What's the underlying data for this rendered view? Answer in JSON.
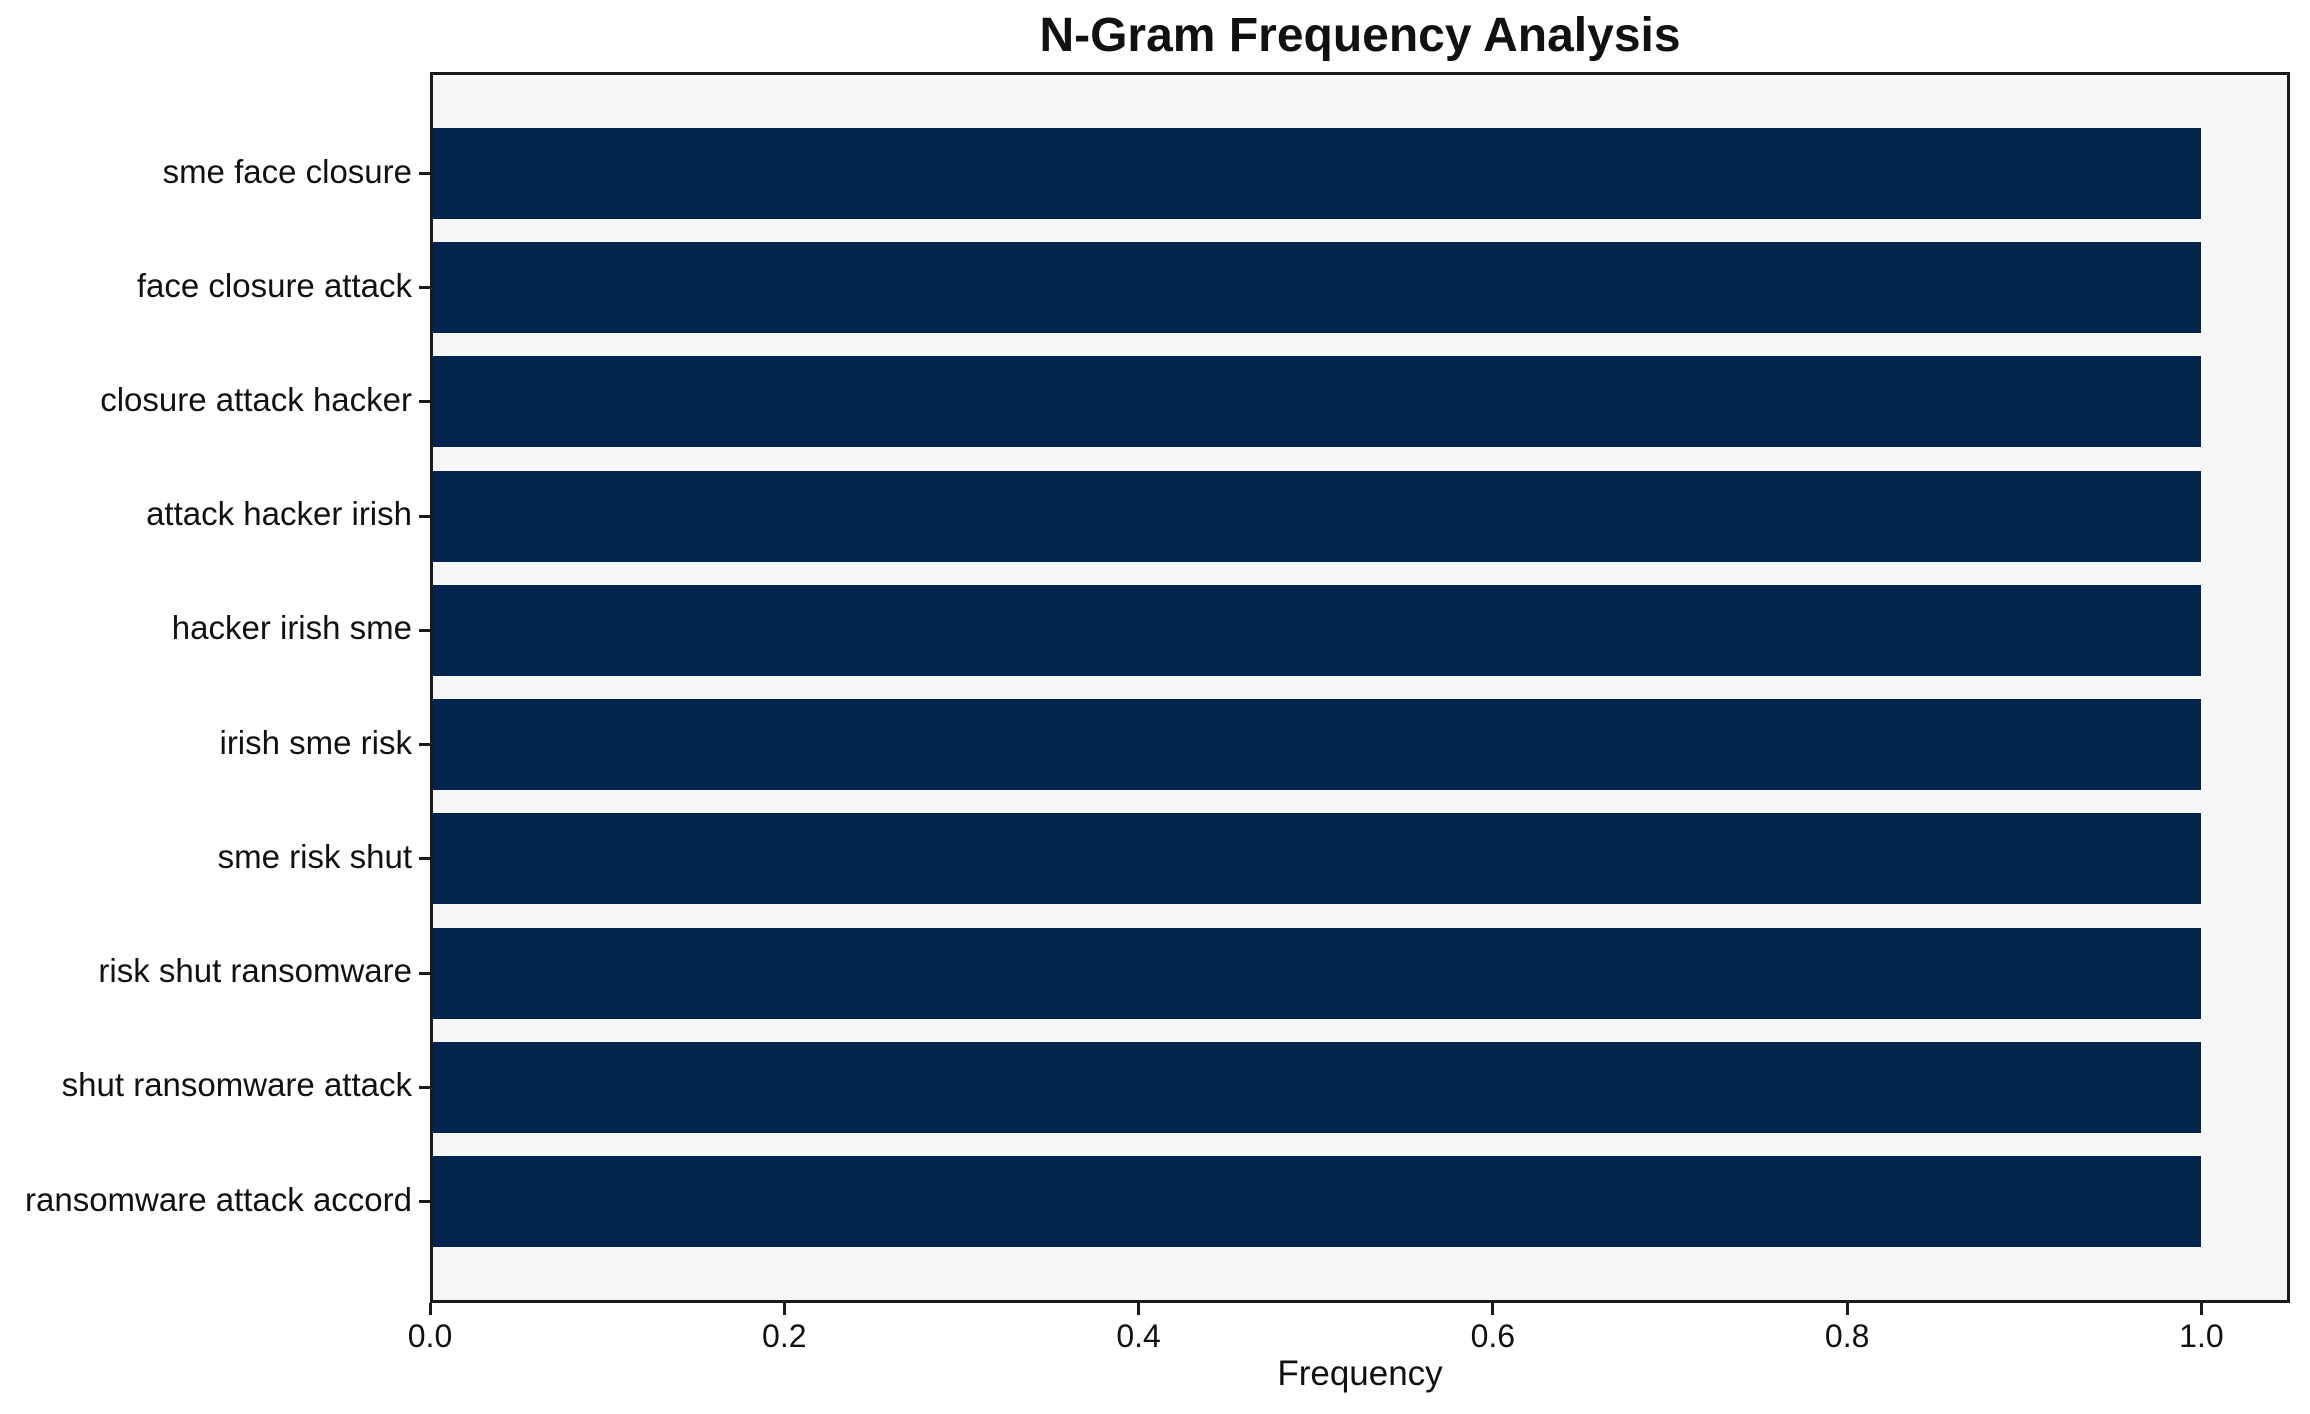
{
  "chart_data": {
    "type": "bar",
    "orientation": "horizontal",
    "title": "N-Gram Frequency Analysis",
    "xlabel": "Frequency",
    "ylabel": "",
    "categories": [
      "sme face closure",
      "face closure attack",
      "closure attack hacker",
      "attack hacker irish",
      "hacker irish sme",
      "irish sme risk",
      "sme risk shut",
      "risk shut ransomware",
      "shut ransomware attack",
      "ransomware attack accord"
    ],
    "values": [
      1.0,
      1.0,
      1.0,
      1.0,
      1.0,
      1.0,
      1.0,
      1.0,
      1.0,
      1.0
    ],
    "xlim": [
      0.0,
      1.05
    ],
    "xticks": [
      {
        "value": 0.0,
        "label": "0.0"
      },
      {
        "value": 0.2,
        "label": "0.2"
      },
      {
        "value": 0.4,
        "label": "0.4"
      },
      {
        "value": 0.6,
        "label": "0.6"
      },
      {
        "value": 0.8,
        "label": "0.8"
      },
      {
        "value": 1.0,
        "label": "1.0"
      }
    ],
    "grid": false,
    "legend": null,
    "colors": {
      "bar": "#02254e",
      "plot_background": "#f5f6f7",
      "figure_background": "#ffffff",
      "spine": "#1a1a1a",
      "text": "#111111"
    }
  }
}
